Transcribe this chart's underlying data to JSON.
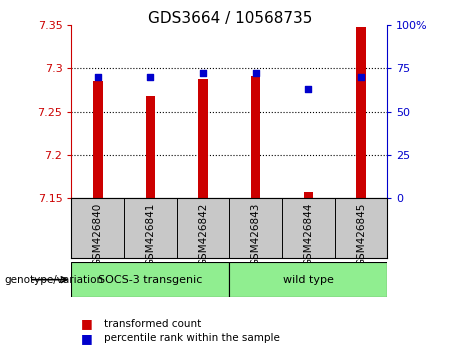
{
  "title": "GDS3664 / 10568735",
  "samples": [
    "GSM426840",
    "GSM426841",
    "GSM426842",
    "GSM426843",
    "GSM426844",
    "GSM426845"
  ],
  "red_values": [
    7.285,
    7.268,
    7.288,
    7.291,
    7.157,
    7.348
  ],
  "blue_percentiles": [
    70,
    70,
    72,
    72,
    63,
    70
  ],
  "y_min": 7.15,
  "y_max": 7.35,
  "y_ticks": [
    7.15,
    7.2,
    7.25,
    7.3,
    7.35
  ],
  "right_y_ticks": [
    0,
    25,
    50,
    75,
    100
  ],
  "right_y_tick_labels": [
    "0",
    "25",
    "50",
    "75",
    "100%"
  ],
  "group1_label": "SOCS-3 transgenic",
  "group2_label": "wild type",
  "group1_count": 3,
  "group2_count": 3,
  "genotype_label": "genotype/variation",
  "legend_red": "transformed count",
  "legend_blue": "percentile rank within the sample",
  "bar_color": "#cc0000",
  "dot_color": "#0000cc",
  "group_bg_color": "#90ee90",
  "tick_label_area_color": "#c8c8c8",
  "bar_width": 0.18,
  "baseline": 7.15,
  "grid_lines": [
    7.2,
    7.25,
    7.3
  ],
  "left_axis_color": "#cc0000",
  "right_axis_color": "#0000cc"
}
